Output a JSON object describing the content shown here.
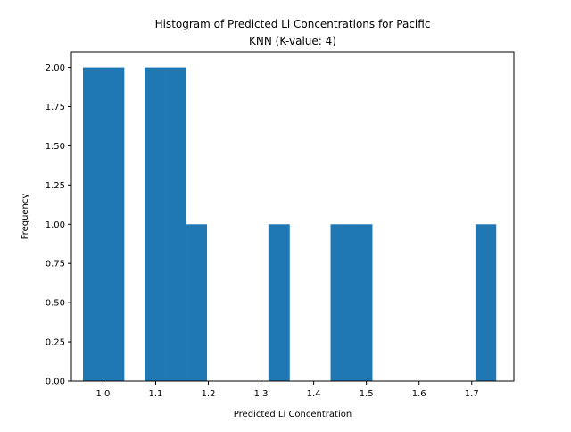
{
  "chart_data": {
    "type": "bar",
    "title_lines": [
      "Histogram of Predicted Li Concentrations for Pacific",
      "KNN (K-value: 4)"
    ],
    "xlabel": "Predicted Li Concentration",
    "ylabel": "Frequency",
    "xlim": [
      0.94,
      1.78
    ],
    "ylim": [
      0.0,
      2.1
    ],
    "x_ticks": [
      "1.0",
      "1.1",
      "1.2",
      "1.3",
      "1.4",
      "1.5",
      "1.6",
      "1.7"
    ],
    "y_ticks": [
      "0.00",
      "0.25",
      "0.50",
      "0.75",
      "1.00",
      "1.25",
      "1.50",
      "1.75",
      "2.00"
    ],
    "bar_color": "#1f77b4",
    "grid": false,
    "bins": [
      {
        "x0": 0.962,
        "x1": 1.001,
        "count": 2
      },
      {
        "x0": 1.001,
        "x1": 1.04,
        "count": 2
      },
      {
        "x0": 1.04,
        "x1": 1.079,
        "count": 0
      },
      {
        "x0": 1.079,
        "x1": 1.118,
        "count": 2
      },
      {
        "x0": 1.118,
        "x1": 1.157,
        "count": 2
      },
      {
        "x0": 1.157,
        "x1": 1.197,
        "count": 1
      },
      {
        "x0": 1.197,
        "x1": 1.236,
        "count": 0
      },
      {
        "x0": 1.236,
        "x1": 1.275,
        "count": 0
      },
      {
        "x0": 1.275,
        "x1": 1.314,
        "count": 0
      },
      {
        "x0": 1.314,
        "x1": 1.354,
        "count": 1
      },
      {
        "x0": 1.354,
        "x1": 1.393,
        "count": 0
      },
      {
        "x0": 1.393,
        "x1": 1.432,
        "count": 0
      },
      {
        "x0": 1.432,
        "x1": 1.471,
        "count": 1
      },
      {
        "x0": 1.471,
        "x1": 1.511,
        "count": 1
      },
      {
        "x0": 1.511,
        "x1": 1.55,
        "count": 0
      },
      {
        "x0": 1.55,
        "x1": 1.589,
        "count": 0
      },
      {
        "x0": 1.589,
        "x1": 1.628,
        "count": 0
      },
      {
        "x0": 1.628,
        "x1": 1.668,
        "count": 0
      },
      {
        "x0": 1.668,
        "x1": 1.707,
        "count": 0
      },
      {
        "x0": 1.707,
        "x1": 1.746,
        "count": 1
      }
    ]
  }
}
